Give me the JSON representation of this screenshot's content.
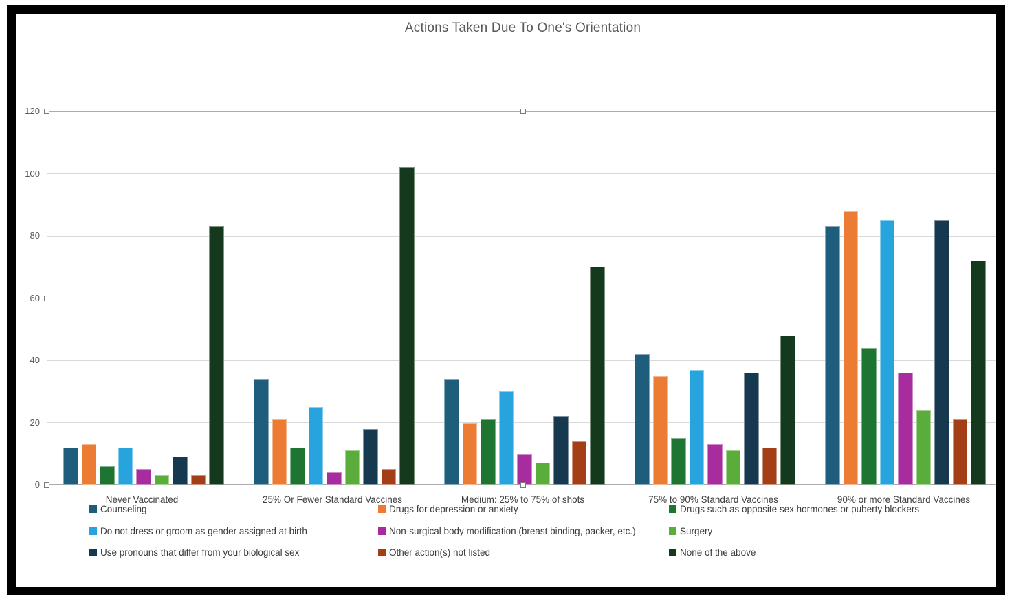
{
  "title": "Actions Taken Due To One's Orientation",
  "chart_data": {
    "type": "bar",
    "title": "Actions Taken Due To One's Orientation",
    "categories": [
      "Never Vaccinated",
      "25% Or Fewer Standard Vaccines",
      "Medium: 25% to 75% of shots",
      "75% to 90% Standard Vaccines",
      "90% or more Standard Vaccines"
    ],
    "series": [
      {
        "name": "Counseling",
        "color": "#1F5D7D",
        "values": [
          12,
          34,
          34,
          42,
          83
        ]
      },
      {
        "name": "Drugs for depression or anxiety",
        "color": "#EC7C33",
        "values": [
          13,
          21,
          20,
          35,
          88
        ]
      },
      {
        "name": "Drugs such as opposite sex hormones or puberty blockers",
        "color": "#1E7431",
        "values": [
          6,
          12,
          21,
          15,
          44
        ]
      },
      {
        "name": "Do not dress or groom as gender assigned at birth",
        "color": "#27A4DD",
        "values": [
          12,
          25,
          30,
          37,
          85
        ]
      },
      {
        "name": "Non-surgical body modification (breast binding, packer, etc.)",
        "color": "#A72C9D",
        "values": [
          5,
          4,
          10,
          13,
          36
        ]
      },
      {
        "name": "Surgery",
        "color": "#5BAD3B",
        "values": [
          3,
          11,
          7,
          11,
          24
        ]
      },
      {
        "name": "Use pronouns that differ from your biological sex",
        "color": "#16394F",
        "values": [
          9,
          18,
          22,
          36,
          85
        ]
      },
      {
        "name": "Other action(s) not listed",
        "color": "#A43E17",
        "values": [
          3,
          5,
          14,
          12,
          21
        ]
      },
      {
        "name": "None of the above",
        "color": "#15391C",
        "values": [
          83,
          102,
          70,
          48,
          72
        ]
      }
    ],
    "ylim": [
      0,
      120
    ],
    "yticks": [
      0,
      20,
      40,
      60,
      80,
      100,
      120
    ],
    "grid": true,
    "legend_position": "bottom",
    "legend_columns": 3
  },
  "colors": {
    "frame": "#000000",
    "title_text": "#595959",
    "axis_text": "#595959",
    "label_text": "#3F3F3F",
    "gridline": "#D9D9D9",
    "axis_line": "#9B9B9B",
    "plot_border": "#ABABAB"
  }
}
